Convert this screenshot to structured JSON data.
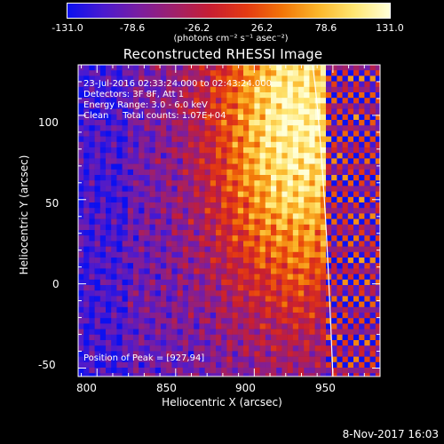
{
  "colorbar": {
    "ticks": [
      "-131.0",
      "-78.6",
      "-26.2",
      "26.2",
      "78.6",
      "131.0"
    ],
    "unit_label": "(photons cm⁻² s⁻¹ asec⁻²)",
    "range": [
      -131.0,
      131.0
    ],
    "palette": [
      "#0b10f0",
      "#4a1ad0",
      "#7a1ea0",
      "#a0206a",
      "#c81e32",
      "#e43a12",
      "#f27508",
      "#fbb62a",
      "#ffe672",
      "#ffffd8"
    ]
  },
  "chart_data": {
    "type": "heatmap",
    "title": "Reconstructed RHESSI Image",
    "xlabel": "Heliocentric X (arcsec)",
    "ylabel": "Heliocentric Y (arcsec)",
    "xlim": [
      788,
      980
    ],
    "ylim": [
      -55,
      130
    ],
    "x_ticks": [
      800,
      850,
      900,
      950
    ],
    "y_ticks": [
      -50,
      0,
      50,
      100
    ],
    "annotations": [
      "23-Jul-2016 02:33:24.000 to 02:43:24.000",
      "Detectors: 3F 8F, Att 1",
      "Energy Range: 3.0 - 6.0 keV",
      "Clean     Total counts: 1.07E+04"
    ],
    "peak_label": "Position of Peak = [927,94]",
    "peak": [
      927,
      94
    ],
    "limb_line": "white solar limb near x ≈ 940-950 arcsec"
  },
  "footer": {
    "date": "8-Nov-2017 16:03"
  }
}
